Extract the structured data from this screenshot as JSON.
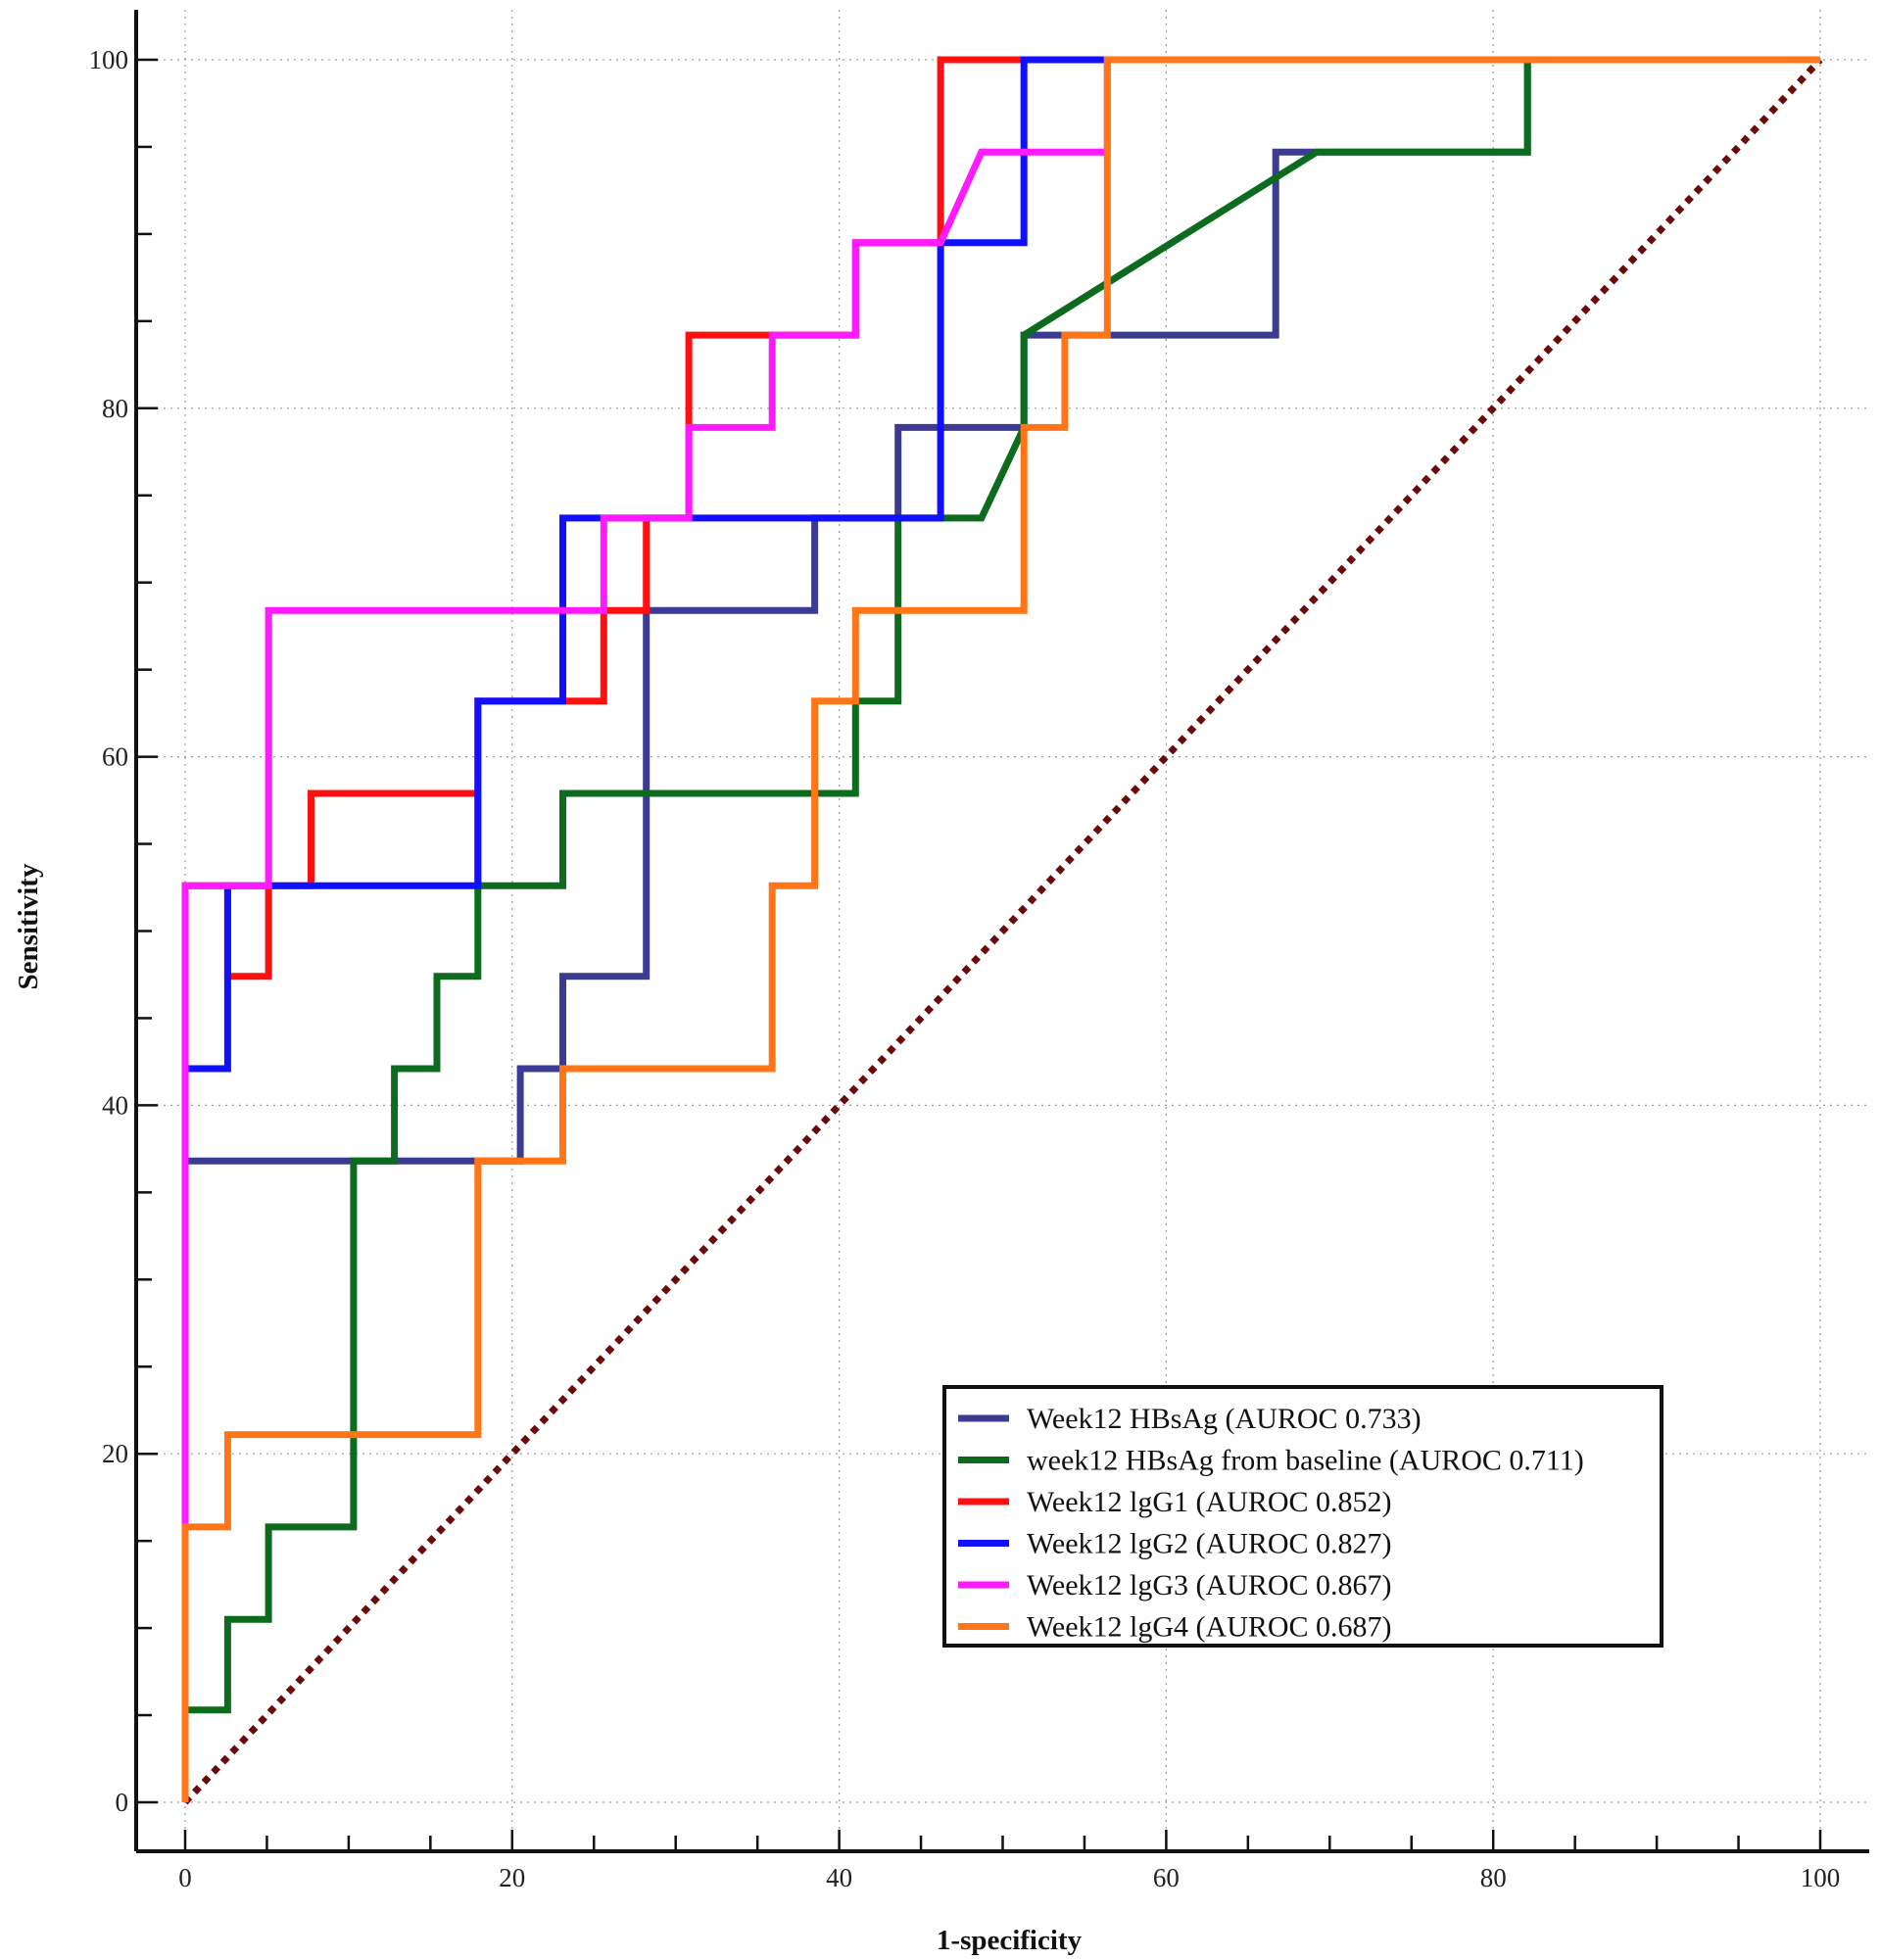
{
  "chart_data": {
    "type": "line",
    "title": "",
    "xlabel": "1-specificity",
    "ylabel": "Sensitivity",
    "xlim": [
      -3,
      103
    ],
    "ylim": [
      -3,
      103
    ],
    "xticks": [
      0,
      20,
      40,
      60,
      80,
      100
    ],
    "yticks": [
      0,
      20,
      40,
      60,
      80,
      100
    ],
    "xtick_labels": [
      "0",
      "20",
      "40",
      "60",
      "80",
      "100"
    ],
    "ytick_labels": [
      "0",
      "20",
      "40",
      "60",
      "80",
      "100"
    ],
    "grid": true,
    "legend_position": "bottom-right",
    "reference_line": {
      "from": [
        0,
        0
      ],
      "to": [
        100,
        100
      ],
      "color": "#6b0a0a",
      "style": "dotted"
    },
    "series": [
      {
        "name": "Week12 HBsAg (AUROC 0.733)",
        "color": "#3b3b93",
        "points": [
          [
            0,
            0
          ],
          [
            0,
            36.8
          ],
          [
            17.9,
            36.8
          ],
          [
            20.5,
            36.8
          ],
          [
            20.5,
            42.1
          ],
          [
            23.1,
            42.1
          ],
          [
            23.1,
            47.4
          ],
          [
            28.2,
            47.4
          ],
          [
            28.2,
            68.4
          ],
          [
            38.5,
            68.4
          ],
          [
            38.5,
            73.7
          ],
          [
            43.6,
            73.7
          ],
          [
            43.6,
            78.9
          ],
          [
            51.3,
            78.9
          ],
          [
            51.3,
            84.2
          ],
          [
            66.7,
            84.2
          ],
          [
            66.7,
            94.7
          ],
          [
            69.2,
            94.7
          ],
          [
            82.1,
            94.7
          ],
          [
            82.1,
            100
          ],
          [
            100,
            100
          ]
        ]
      },
      {
        "name": "week12 HBsAg from baseline (AUROC 0.711)",
        "color": "#0d6b1e",
        "points": [
          [
            0,
            0
          ],
          [
            0,
            5.3
          ],
          [
            2.6,
            5.3
          ],
          [
            2.6,
            10.5
          ],
          [
            5.1,
            10.5
          ],
          [
            5.1,
            15.8
          ],
          [
            10.3,
            15.8
          ],
          [
            10.3,
            36.8
          ],
          [
            12.8,
            36.8
          ],
          [
            12.8,
            42.1
          ],
          [
            15.4,
            42.1
          ],
          [
            15.4,
            47.4
          ],
          [
            17.9,
            47.4
          ],
          [
            17.9,
            52.6
          ],
          [
            23.1,
            52.6
          ],
          [
            23.1,
            57.9
          ],
          [
            41.0,
            57.9
          ],
          [
            41.0,
            63.2
          ],
          [
            43.6,
            63.2
          ],
          [
            43.6,
            73.7
          ],
          [
            48.7,
            73.7
          ],
          [
            51.3,
            78.9
          ],
          [
            51.3,
            84.2
          ],
          [
            69.2,
            94.7
          ],
          [
            82.1,
            94.7
          ],
          [
            82.1,
            100
          ],
          [
            100,
            100
          ]
        ]
      },
      {
        "name": "Week12 lgG1 (AUROC 0.852)",
        "color": "#ff1010",
        "points": [
          [
            0,
            0
          ],
          [
            0,
            52.6
          ],
          [
            2.6,
            52.6
          ],
          [
            2.6,
            47.4
          ],
          [
            5.1,
            47.4
          ],
          [
            5.1,
            52.6
          ],
          [
            7.7,
            52.6
          ],
          [
            7.7,
            57.9
          ],
          [
            17.9,
            57.9
          ],
          [
            17.9,
            52.6
          ],
          [
            17.9,
            63.2
          ],
          [
            23.1,
            63.2
          ],
          [
            25.6,
            63.2
          ],
          [
            25.6,
            68.4
          ],
          [
            28.2,
            68.4
          ],
          [
            28.2,
            73.7
          ],
          [
            30.8,
            73.7
          ],
          [
            30.8,
            84.2
          ],
          [
            35.9,
            84.2
          ],
          [
            41.0,
            84.2
          ],
          [
            41.0,
            89.5
          ],
          [
            46.2,
            89.5
          ],
          [
            46.2,
            100
          ],
          [
            100,
            100
          ]
        ]
      },
      {
        "name": "Week12 lgG2 (AUROC 0.827)",
        "color": "#1010ff",
        "points": [
          [
            0,
            0
          ],
          [
            0,
            42.1
          ],
          [
            2.6,
            42.1
          ],
          [
            2.6,
            52.6
          ],
          [
            17.9,
            52.6
          ],
          [
            17.9,
            63.2
          ],
          [
            23.1,
            63.2
          ],
          [
            23.1,
            73.7
          ],
          [
            46.2,
            73.7
          ],
          [
            46.2,
            89.5
          ],
          [
            51.3,
            89.5
          ],
          [
            51.3,
            100
          ],
          [
            100,
            100
          ]
        ]
      },
      {
        "name": "Week12 lgG3 (AUROC 0.867)",
        "color": "#ff1aff",
        "points": [
          [
            0,
            0
          ],
          [
            0,
            15.8
          ],
          [
            0,
            52.6
          ],
          [
            5.1,
            52.6
          ],
          [
            5.1,
            68.4
          ],
          [
            25.6,
            68.4
          ],
          [
            25.6,
            73.7
          ],
          [
            30.8,
            73.7
          ],
          [
            30.8,
            78.9
          ],
          [
            35.9,
            78.9
          ],
          [
            35.9,
            84.2
          ],
          [
            41.0,
            84.2
          ],
          [
            41.0,
            89.5
          ],
          [
            46.2,
            89.5
          ],
          [
            48.7,
            94.7
          ],
          [
            56.4,
            94.7
          ],
          [
            56.4,
            100
          ],
          [
            100,
            100
          ]
        ]
      },
      {
        "name": "Week12 lgG4 (AUROC 0.687)",
        "color": "#ff7518",
        "points": [
          [
            0,
            0
          ],
          [
            0,
            15.8
          ],
          [
            2.6,
            15.8
          ],
          [
            2.6,
            21.1
          ],
          [
            17.9,
            21.1
          ],
          [
            17.9,
            36.8
          ],
          [
            23.1,
            36.8
          ],
          [
            23.1,
            42.1
          ],
          [
            35.9,
            42.1
          ],
          [
            35.9,
            52.6
          ],
          [
            38.5,
            52.6
          ],
          [
            38.5,
            63.2
          ],
          [
            41.0,
            63.2
          ],
          [
            41.0,
            68.4
          ],
          [
            51.3,
            68.4
          ],
          [
            51.3,
            78.9
          ],
          [
            53.8,
            78.9
          ],
          [
            53.8,
            84.2
          ],
          [
            56.4,
            84.2
          ],
          [
            56.4,
            100
          ],
          [
            100,
            100
          ]
        ]
      }
    ]
  }
}
